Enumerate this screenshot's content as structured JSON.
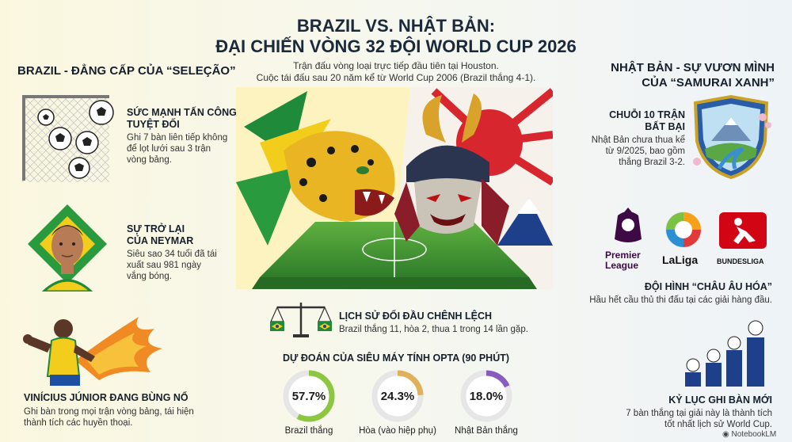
{
  "header": {
    "title_line1": "BRAZIL VS. NHẬT BẢN:",
    "title_line2": "ĐẠI CHIẾN VÒNG 32 ĐỘI WORLD CUP 2026",
    "subtitle_line1": "Trận đấu vòng loại trực tiếp đầu tiên tại Houston.",
    "subtitle_line2": "Cuộc tái đấu sau 20 năm kể từ World Cup 2006 (Brazil thắng 4-1)."
  },
  "brazil": {
    "heading": "BRAZIL - ĐẲNG CẤP CỦA “SELEÇÃO”",
    "items": [
      {
        "title1": "SỨC MẠNH TẤN CÔNG",
        "title2": "TUYỆT ĐỐI",
        "body": [
          "Ghi 7 bàn liên tiếp không",
          "để lọt lưới sau 3 trận",
          "vòng bảng."
        ]
      },
      {
        "title1": "SỰ TRỞ LẠI",
        "title2": "CỦA NEYMAR",
        "body": [
          "Siêu sao 34 tuổi đã tái",
          "xuất sau 981 ngày",
          "vắng bóng."
        ]
      },
      {
        "title1": "VINÍCIUS JÚNIOR ĐANG BÙNG NỔ",
        "title2": "",
        "body": [
          "Ghi bàn trong mọi trận vòng bảng, tái hiện",
          "thành tích các huyền thoại."
        ]
      }
    ]
  },
  "japan": {
    "heading_line1": "NHẬT BẢN - SỰ VƯƠN MÌNH",
    "heading_line2": "CỦA “SAMURAI XANH”",
    "items": [
      {
        "title1": "CHUỖI 10 TRẬN",
        "title2": "BẤT BẠI",
        "body": [
          "Nhật Bản chưa thua kể",
          "từ 9/2025, bao gồm",
          "thắng Brazil 3-2."
        ]
      },
      {
        "title1": "ĐỘI HÌNH “CHÂU ÂU HÓA”",
        "title2": "",
        "body": [
          "Hầu hết cầu thủ thi đấu tại các giải hàng đầu."
        ]
      },
      {
        "title1": "KỶ LỤC GHI BÀN MỚI",
        "title2": "",
        "body": [
          "7 bàn thắng tại giải này là thành tích",
          "tốt nhất lịch sử World Cup."
        ]
      }
    ],
    "leagues": {
      "premier_line1": "Premier",
      "premier_line2": "League",
      "laliga": "LaLiga",
      "bundesliga": "BUNDESLIGA"
    }
  },
  "h2h": {
    "title": "LỊCH SỬ ĐỐI ĐẦU CHÊNH LỆCH",
    "body": "Brazil thắng 11, hòa 2, thua 1 trong 14 lần gặp."
  },
  "prediction": {
    "heading": "DỰ ĐOÁN CỦA SIÊU MÁY TÍNH OPTA (90 PHÚT)",
    "donuts": [
      {
        "value": 57.7,
        "text": "57.7%",
        "label": "Brazil thắng",
        "color": "#8dc63f"
      },
      {
        "value": 24.3,
        "text": "24.3%",
        "label": "Hòa (vào hiệp phụ)",
        "color": "#e0b15a"
      },
      {
        "value": 18.0,
        "text": "18.0%",
        "label": "Nhật Bản thắng",
        "color": "#8a5bbf"
      }
    ]
  },
  "footer": {
    "brand": "NotebookLM"
  },
  "colors": {
    "brazil_green": "#1f8a3a",
    "brazil_yellow": "#f3cd1b",
    "japan_red": "#d7262e",
    "japan_blue": "#1e3f8a"
  }
}
